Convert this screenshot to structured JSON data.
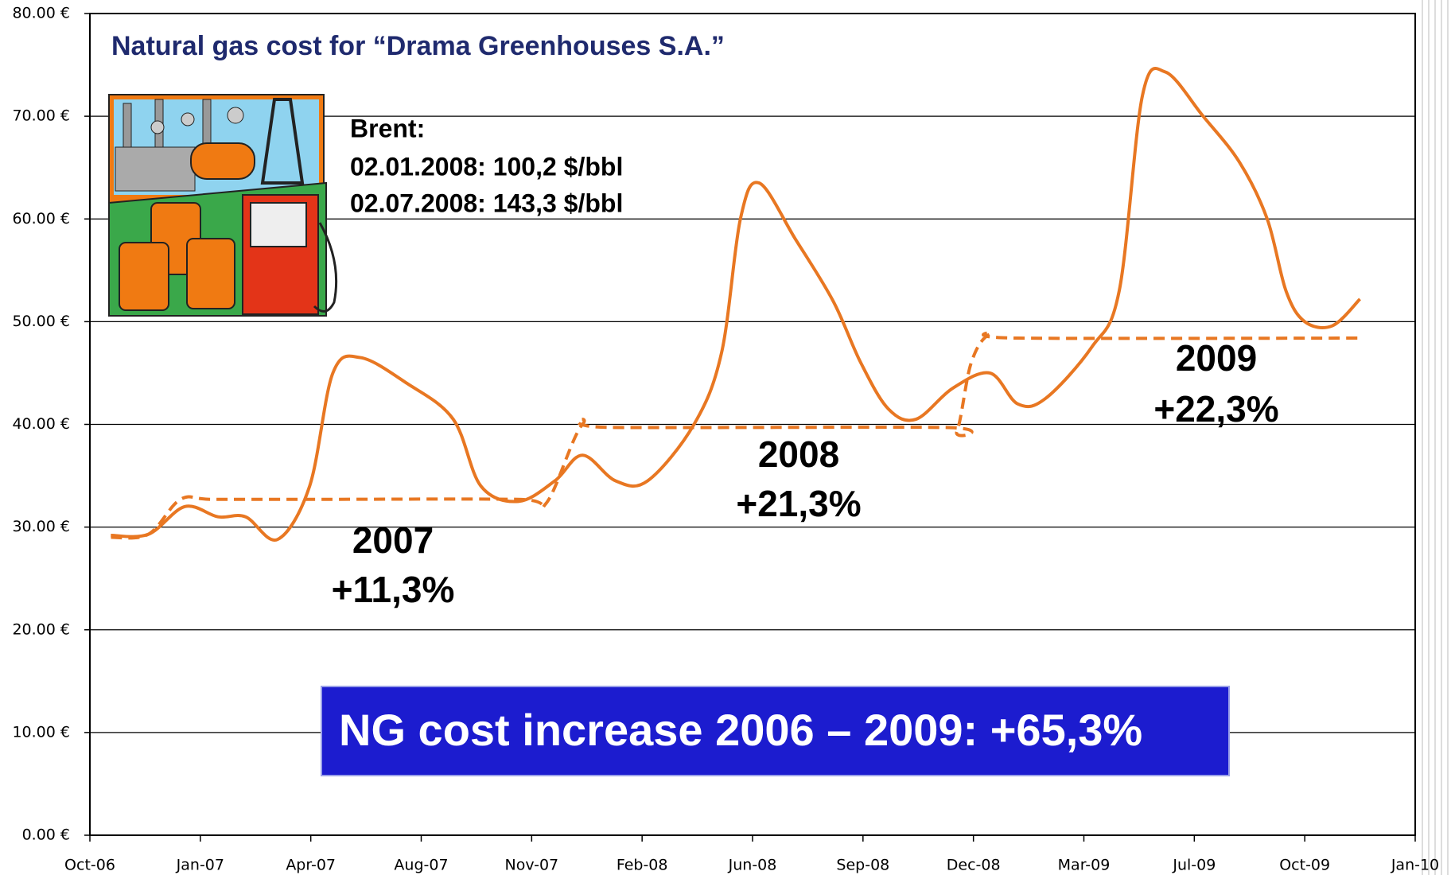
{
  "chart_data": {
    "type": "line",
    "title": "Natural gas cost for “Drama Greenhouses S.A.”",
    "note": [
      "Brent:",
      "02.01.2008: 100,2 $/bbl",
      "02.07.2008: 143,3 $/bbl"
    ],
    "annotations": [
      [
        "2007",
        "+11,3%"
      ],
      [
        "2008",
        "+21,3%"
      ],
      [
        "2009",
        "+22,3%"
      ]
    ],
    "banner": "NG cost increase 2006 – 2009:  +65,3%",
    "xlim": [
      0,
      12
    ],
    "xticks": [
      {
        "value": 0,
        "label": "Oct-06"
      },
      {
        "value": 1,
        "label": "Jan-07"
      },
      {
        "value": 2,
        "label": "Apr-07"
      },
      {
        "value": 3,
        "label": "Aug-07"
      },
      {
        "value": 4,
        "label": "Nov-07"
      },
      {
        "value": 5,
        "label": "Feb-08"
      },
      {
        "value": 6,
        "label": "Jun-08"
      },
      {
        "value": 7,
        "label": "Sep-08"
      },
      {
        "value": 8,
        "label": "Dec-08"
      },
      {
        "value": 9,
        "label": "Mar-09"
      },
      {
        "value": 10,
        "label": "Jul-09"
      },
      {
        "value": 11,
        "label": "Oct-09"
      },
      {
        "value": 12,
        "label": "Jan-10"
      }
    ],
    "ylim": [
      0,
      80
    ],
    "yticks": [
      {
        "value": 0,
        "label": "0.00 €"
      },
      {
        "value": 10,
        "label": "10.00 €"
      },
      {
        "value": 20,
        "label": "20.00 €"
      },
      {
        "value": 30,
        "label": "30.00 €"
      },
      {
        "value": 40,
        "label": "40.00 €"
      },
      {
        "value": 50,
        "label": "50.00 €"
      },
      {
        "value": 60,
        "label": "60.00 €"
      },
      {
        "value": 70,
        "label": "70.00 €"
      },
      {
        "value": 80,
        "label": "80.00 €"
      }
    ],
    "grid": true,
    "series": [
      {
        "color": "#e87722",
        "style": "solid",
        "x": [
          0.19,
          0.53,
          0.86,
          1.16,
          1.41,
          1.7,
          1.99,
          2.2,
          2.45,
          2.87,
          3.29,
          3.54,
          3.88,
          4.21,
          4.46,
          4.76,
          5.05,
          5.47,
          5.72,
          5.89,
          6.06,
          6.39,
          6.73,
          6.98,
          7.23,
          7.48,
          7.81,
          8.15,
          8.4,
          8.65,
          9.07,
          9.32,
          9.53,
          9.74,
          10.08,
          10.41,
          10.66,
          10.83,
          11.0,
          11.25,
          11.5
        ],
        "values": [
          29.2,
          29.3,
          32.0,
          31.0,
          31.0,
          28.8,
          34,
          45,
          46.5,
          44,
          40.5,
          34,
          32.5,
          34.5,
          37,
          34.5,
          34.5,
          40,
          47,
          60,
          63.5,
          58,
          52,
          46,
          41.5,
          40.5,
          43.5,
          45,
          42,
          42.5,
          47.5,
          53,
          72,
          74.3,
          70,
          65.5,
          60,
          53,
          50,
          49.6,
          52.2
        ]
      },
      {
        "color": "#e87722",
        "style": "dashed",
        "x": [
          0.19,
          0.53,
          0.82,
          1.11,
          1.95,
          3.88,
          4.13,
          4.46,
          4.72,
          7.73,
          7.85,
          7.98,
          8.15,
          8.4,
          11.5
        ],
        "values": [
          29.0,
          29.3,
          32.7,
          32.7,
          32.7,
          32.7,
          32.3,
          40,
          39.7,
          39.7,
          39.3,
          46,
          48.8,
          48.4,
          48.4
        ]
      }
    ]
  }
}
